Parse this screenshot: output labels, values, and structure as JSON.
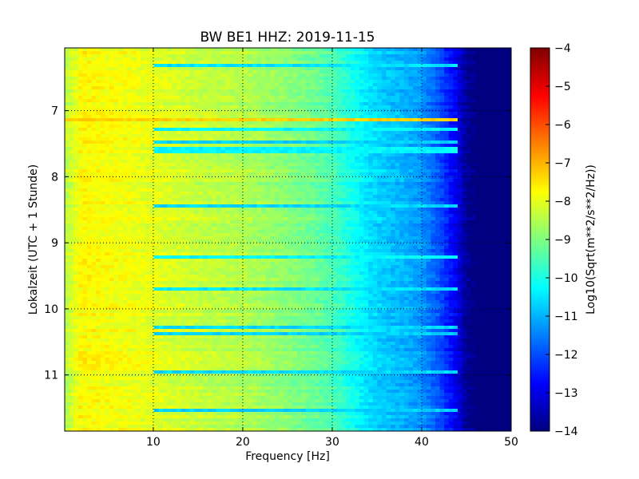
{
  "chart_data": {
    "type": "heatmap",
    "title": "BW BE1 HHZ: 2019-11-15",
    "xlabel": "Frequency [Hz]",
    "ylabel": "Lokalzeit (UTC + 1 Stunde)",
    "xlim": [
      0.1,
      50
    ],
    "ylim": [
      6.05,
      11.85
    ],
    "y_inverted": true,
    "x_ticks": [
      10,
      20,
      30,
      40,
      50
    ],
    "y_ticks": [
      7,
      8,
      9,
      10,
      11
    ],
    "grid": true,
    "colormap": "jet",
    "colorbar": {
      "label": "Log10(Sqrt(m**2/s**2/Hz))",
      "range": [
        -14,
        -4
      ],
      "ticks": [
        -4,
        -5,
        -6,
        -7,
        -8,
        -9,
        -10,
        -11,
        -12,
        -13,
        -14
      ]
    },
    "frequency_profile": {
      "x": [
        0.1,
        2,
        5,
        10,
        15,
        20,
        25,
        28,
        30,
        32,
        34,
        36,
        38,
        40,
        42,
        44,
        45,
        46,
        48,
        50
      ],
      "values": [
        -8.5,
        -7.7,
        -7.8,
        -8.0,
        -8.3,
        -8.5,
        -8.9,
        -9.2,
        -9.5,
        -10.0,
        -10.5,
        -10.8,
        -11.0,
        -11.3,
        -12.0,
        -13.0,
        -13.8,
        -14.0,
        -14.0,
        -14.0
      ]
    },
    "bands": [
      {
        "time": 6.32,
        "values": -10.5
      },
      {
        "time": 7.12,
        "values": -7.3
      },
      {
        "time": 7.3,
        "values": -10.3
      },
      {
        "time": 7.48,
        "values": -10.7
      },
      {
        "time": 7.6,
        "values": -10.3
      },
      {
        "time": 8.45,
        "values": -10.6
      },
      {
        "time": 9.23,
        "values": -10.3
      },
      {
        "time": 9.68,
        "values": -10.5
      },
      {
        "time": 10.28,
        "values": -10.6
      },
      {
        "time": 10.38,
        "values": -10.7
      },
      {
        "time": 10.97,
        "values": -10.6
      },
      {
        "time": 11.55,
        "values": -10.7
      }
    ]
  }
}
